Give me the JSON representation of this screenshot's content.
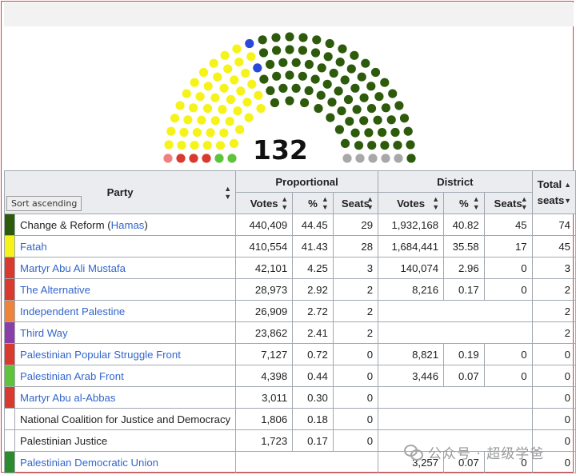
{
  "parliament": {
    "total_seats": "132",
    "colors": {
      "hamas": "#2d5a0b",
      "fatah": "#f5f31a",
      "blue": "#2a49d8",
      "pink": "#f08080",
      "red": "#d83a2e",
      "green_light": "#5ec43c",
      "grey": "#a8a8a8"
    }
  },
  "table": {
    "headers": {
      "party": "Party",
      "proportional": "Proportional",
      "district": "District",
      "total_seats": "Total seats",
      "votes": "Votes",
      "percent": "%",
      "seats": "Seats"
    },
    "tooltip": "Sort ascending",
    "rows": [
      {
        "color": "#2d5a0b",
        "name_plain": "Change & Reform (",
        "name_link": "Hamas",
        "name_tail": ")",
        "p_votes": "440,409",
        "p_pct": "44.45",
        "p_seats": "29",
        "d_votes": "1,932,168",
        "d_pct": "40.82",
        "d_seats": "45",
        "total": "74"
      },
      {
        "color": "#f5f31a",
        "name_link": "Fatah",
        "p_votes": "410,554",
        "p_pct": "41.43",
        "p_seats": "28",
        "d_votes": "1,684,441",
        "d_pct": "35.58",
        "d_seats": "17",
        "total": "45"
      },
      {
        "color": "#d83a2e",
        "name_link": "Martyr Abu Ali Mustafa",
        "p_votes": "42,101",
        "p_pct": "4.25",
        "p_seats": "3",
        "d_votes": "140,074",
        "d_pct": "2.96",
        "d_seats": "0",
        "total": "3"
      },
      {
        "color": "#d83a2e",
        "name_link": "The Alternative",
        "p_votes": "28,973",
        "p_pct": "2.92",
        "p_seats": "2",
        "d_votes": "8,216",
        "d_pct": "0.17",
        "d_seats": "0",
        "total": "2"
      },
      {
        "color": "#f0833a",
        "name_link": "Independent Palestine",
        "p_votes": "26,909",
        "p_pct": "2.72",
        "p_seats": "2",
        "total": "2"
      },
      {
        "color": "#8a3fa8",
        "name_link": "Third Way",
        "p_votes": "23,862",
        "p_pct": "2.41",
        "p_seats": "2",
        "total": "2"
      },
      {
        "color": "#d83a2e",
        "name_link": "Palestinian Popular Struggle Front",
        "p_votes": "7,127",
        "p_pct": "0.72",
        "p_seats": "0",
        "d_votes": "8,821",
        "d_pct": "0.19",
        "d_seats": "0",
        "total": "0"
      },
      {
        "color": "#5ec43c",
        "name_link": "Palestinian Arab Front",
        "p_votes": "4,398",
        "p_pct": "0.44",
        "p_seats": "0",
        "d_votes": "3,446",
        "d_pct": "0.07",
        "d_seats": "0",
        "total": "0"
      },
      {
        "color": "#d83a2e",
        "name_link": "Martyr Abu al-Abbas",
        "p_votes": "3,011",
        "p_pct": "0.30",
        "p_seats": "0",
        "total": "0"
      },
      {
        "color": "#ffffff",
        "name_plain": "National Coalition for Justice and Democracy",
        "p_votes": "1,806",
        "p_pct": "0.18",
        "p_seats": "0",
        "total": "0"
      },
      {
        "color": "#ffffff",
        "name_plain": "Palestinian Justice",
        "p_votes": "1,723",
        "p_pct": "0.17",
        "p_seats": "0",
        "total": "0"
      },
      {
        "color": "#2d8a2d",
        "name_link": "Palestinian Democratic Union",
        "d_votes": "3,257",
        "d_pct": "0.07",
        "d_seats": "0",
        "total": "0"
      }
    ]
  },
  "watermark": "公众号 · 超级学爸"
}
